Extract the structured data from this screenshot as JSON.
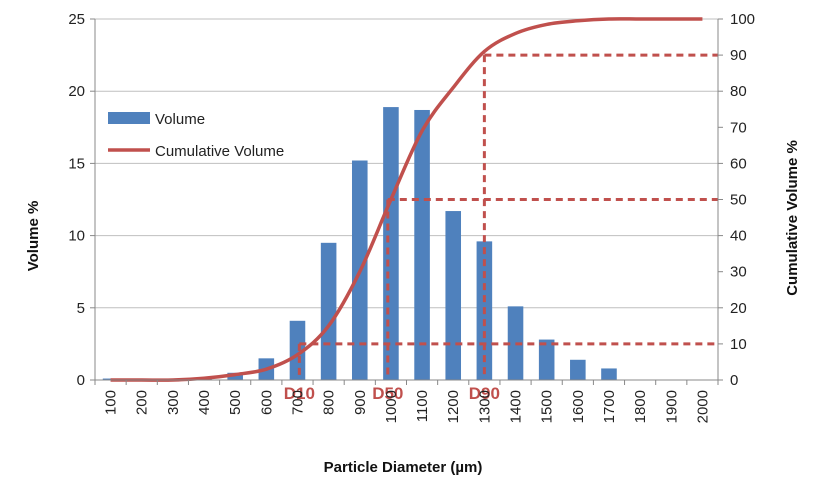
{
  "chart_data": {
    "type": "bar",
    "xlabel": "Particle Diameter (µm)",
    "ylabel": "Volume %",
    "y2label": "Cumulative Volume %",
    "ylim": [
      0,
      25
    ],
    "y2lim": [
      0,
      100
    ],
    "y_ticks": [
      0,
      5,
      10,
      15,
      20,
      25
    ],
    "y2_ticks": [
      0,
      10,
      20,
      30,
      40,
      50,
      60,
      70,
      80,
      90,
      100
    ],
    "grid": true,
    "legend_position": "top-left",
    "categories": [
      "100",
      "200",
      "300",
      "400",
      "500",
      "600",
      "700",
      "800",
      "900",
      "1000",
      "1100",
      "1200",
      "1300",
      "1400",
      "1500",
      "1600",
      "1700",
      "1800",
      "1900",
      "2000"
    ],
    "series": [
      {
        "name": "Volume",
        "type": "bar",
        "axis": "left",
        "color": "#4F81BD",
        "values": [
          0.1,
          0,
          0,
          0.1,
          0.5,
          1.5,
          4.1,
          9.5,
          15.2,
          18.9,
          18.7,
          11.7,
          9.6,
          5.1,
          2.8,
          1.4,
          0.8,
          0,
          0,
          0
        ]
      },
      {
        "name": "Cumulative Volume",
        "type": "line",
        "axis": "right",
        "color": "#C0504D",
        "values": [
          0,
          0,
          0,
          0.5,
          1.5,
          3,
          7,
          15,
          30,
          50,
          69,
          81,
          91,
          96,
          98.5,
          99.5,
          100,
          100,
          100,
          100
        ]
      }
    ],
    "markers": [
      {
        "label": "D10",
        "x": 706,
        "y2": 10
      },
      {
        "label": "D50",
        "x": 990,
        "y2": 50
      },
      {
        "label": "D90",
        "x": 1300,
        "y2": 90
      }
    ],
    "marker_color": "#C0504D"
  }
}
